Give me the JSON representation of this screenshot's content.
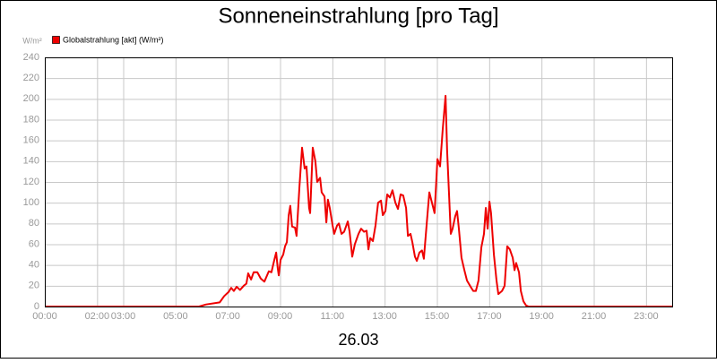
{
  "chart_data": {
    "type": "line",
    "title": "Sonneneinstrahlung [pro Tag]",
    "y_axis_label": "W/m²",
    "x_axis_label": "26.03",
    "xlim": [
      0,
      24
    ],
    "xticks": [
      {
        "value": 0,
        "label": "00:00"
      },
      {
        "value": 2,
        "label": "02:00"
      },
      {
        "value": 3,
        "label": "03:00"
      },
      {
        "value": 5,
        "label": "05:00"
      },
      {
        "value": 7,
        "label": "07:00"
      },
      {
        "value": 9,
        "label": "09:00"
      },
      {
        "value": 11,
        "label": "11:00"
      },
      {
        "value": 13,
        "label": "13:00"
      },
      {
        "value": 15,
        "label": "15:00"
      },
      {
        "value": 17,
        "label": "17:00"
      },
      {
        "value": 19,
        "label": "19:00"
      },
      {
        "value": 21,
        "label": "21:00"
      },
      {
        "value": 23,
        "label": "23:00"
      }
    ],
    "ylim": [
      0,
      240
    ],
    "yticks": [
      0,
      20,
      40,
      60,
      80,
      100,
      120,
      140,
      160,
      180,
      200,
      220,
      240
    ],
    "grid": true,
    "legend": "top-left",
    "x": [
      0,
      5.9,
      6.17,
      6.69,
      6.86,
      7.03,
      7.13,
      7.23,
      7.34,
      7.47,
      7.61,
      7.71,
      7.78,
      7.89,
      7.99,
      8.13,
      8.26,
      8.4,
      8.57,
      8.67,
      8.78,
      8.85,
      8.91,
      8.95,
      9.02,
      9.12,
      9.19,
      9.26,
      9.33,
      9.39,
      9.46,
      9.57,
      9.63,
      9.74,
      9.84,
      9.94,
      10.01,
      10.11,
      10.15,
      10.25,
      10.35,
      10.42,
      10.53,
      10.59,
      10.7,
      10.77,
      10.83,
      10.9,
      11.01,
      11.07,
      11.18,
      11.25,
      11.35,
      11.45,
      11.59,
      11.66,
      11.76,
      11.86,
      12.0,
      12.1,
      12.21,
      12.31,
      12.38,
      12.45,
      12.55,
      12.65,
      12.75,
      12.86,
      12.93,
      13.03,
      13.1,
      13.2,
      13.3,
      13.41,
      13.51,
      13.61,
      13.71,
      13.82,
      13.89,
      13.99,
      14.06,
      14.16,
      14.23,
      14.33,
      14.43,
      14.5,
      14.61,
      14.71,
      14.81,
      14.91,
      15.02,
      15.12,
      15.22,
      15.33,
      15.39,
      15.46,
      15.53,
      15.6,
      15.7,
      15.77,
      15.84,
      15.94,
      16.05,
      16.15,
      16.29,
      16.39,
      16.49,
      16.59,
      16.7,
      16.8,
      16.87,
      16.94,
      17.01,
      17.07,
      17.18,
      17.28,
      17.35,
      17.49,
      17.59,
      17.69,
      17.79,
      17.9,
      17.97,
      18.03,
      18.14,
      18.21,
      18.31,
      18.41,
      18.51,
      24
    ],
    "series": [
      {
        "name": "Globalstrahlung [akt] (W/m²)",
        "color": "#ee0000",
        "values": [
          0,
          0,
          2,
          4,
          10,
          14,
          18,
          15,
          19,
          16,
          20,
          22,
          32,
          26,
          33,
          33,
          27,
          24,
          34,
          33,
          45,
          52,
          37,
          30,
          45,
          50,
          58,
          62,
          88,
          97,
          77,
          76,
          68,
          115,
          153,
          133,
          135,
          95,
          90,
          153,
          140,
          120,
          124,
          110,
          106,
          81,
          103,
          95,
          78,
          70,
          78,
          80,
          70,
          72,
          82,
          72,
          48,
          60,
          70,
          75,
          72,
          73,
          55,
          66,
          63,
          78,
          100,
          102,
          88,
          92,
          108,
          105,
          112,
          100,
          94,
          108,
          107,
          95,
          68,
          70,
          62,
          48,
          44,
          52,
          54,
          46,
          80,
          110,
          100,
          90,
          142,
          135,
          170,
          203,
          150,
          110,
          70,
          75,
          87,
          92,
          75,
          47,
          35,
          25,
          19,
          15,
          15,
          25,
          57,
          70,
          95,
          75,
          101,
          90,
          50,
          25,
          12,
          15,
          20,
          58,
          55,
          47,
          35,
          42,
          33,
          15,
          5,
          1,
          0,
          0
        ]
      }
    ]
  }
}
